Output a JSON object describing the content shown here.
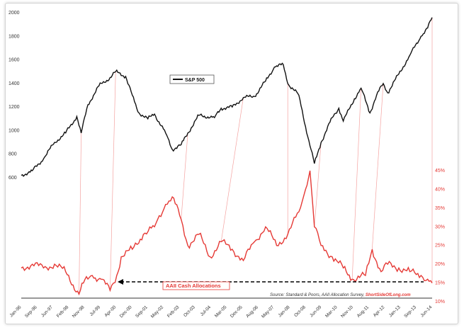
{
  "chart_data": {
    "type": "line",
    "title": "",
    "left_axis": {
      "ticks": [
        600,
        800,
        1000,
        1200,
        1400,
        1600,
        1800,
        2000
      ],
      "range": [
        400,
        2000
      ]
    },
    "right_axis": {
      "ticks": [
        "10%",
        "15%",
        "20%",
        "25%",
        "30%",
        "35%",
        "40%",
        "45%"
      ],
      "range": [
        10,
        45
      ]
    },
    "x_axis_ticks": [
      "Jan-96",
      "Sep-96",
      "Jun-97",
      "Feb-98",
      "Nov-98",
      "Jul-99",
      "Apr-00",
      "Dec-00",
      "Sep-01",
      "May-02",
      "Feb-03",
      "Oct-03",
      "Jul-04",
      "Mar-05",
      "Dec-05",
      "Aug-06",
      "May-07",
      "Jan-08",
      "Oct-08",
      "Jun-09",
      "Mar-10",
      "Nov-10",
      "Aug-11",
      "Apr-12",
      "Jan-13",
      "Sep-13",
      "Jun-14"
    ],
    "series": [
      {
        "name": "S&P 500",
        "color": "#111111",
        "axis": "left",
        "x": [
          1996.0,
          1996.5,
          1997.0,
          1997.5,
          1998.0,
          1998.5,
          1998.7,
          1999.0,
          1999.5,
          2000.0,
          2000.25,
          2000.7,
          2001.0,
          2001.25,
          2001.7,
          2002.0,
          2002.5,
          2002.8,
          2003.2,
          2003.5,
          2004.0,
          2004.7,
          2005.0,
          2005.5,
          2006.0,
          2006.5,
          2007.0,
          2007.4,
          2007.8,
          2008.0,
          2008.5,
          2008.9,
          2009.2,
          2009.5,
          2010.0,
          2010.3,
          2010.5,
          2011.0,
          2011.3,
          2011.7,
          2012.0,
          2012.3,
          2012.5,
          2013.0,
          2013.5,
          2014.0,
          2014.3,
          2014.5
        ],
        "values": [
          620,
          660,
          760,
          900,
          980,
          1120,
          980,
          1220,
          1380,
          1450,
          1500,
          1460,
          1300,
          1160,
          1100,
          1140,
          980,
          840,
          880,
          980,
          1130,
          1110,
          1190,
          1200,
          1280,
          1290,
          1420,
          1540,
          1560,
          1400,
          1300,
          950,
          720,
          900,
          1110,
          1190,
          1080,
          1270,
          1360,
          1150,
          1300,
          1400,
          1320,
          1480,
          1640,
          1800,
          1870,
          1960
        ]
      },
      {
        "name": "AAII Cash Allocations",
        "color": "#e53935",
        "axis": "right",
        "x": [
          1996.0,
          1996.5,
          1997.0,
          1997.5,
          1998.0,
          1998.6,
          1998.8,
          1999.2,
          1999.6,
          2000.0,
          2000.3,
          2000.5,
          2001.0,
          2001.5,
          2002.0,
          2002.5,
          2002.8,
          2003.2,
          2003.5,
          2004.0,
          2004.5,
          2005.0,
          2005.5,
          2006.0,
          2006.5,
          2007.0,
          2007.5,
          2008.0,
          2008.5,
          2008.8,
          2009.0,
          2009.2,
          2009.5,
          2010.0,
          2010.5,
          2010.9,
          2011.5,
          2011.8,
          2012.2,
          2012.5,
          2013.0,
          2013.5,
          2014.0,
          2014.3,
          2014.5
        ],
        "values": [
          19,
          20,
          19,
          20,
          18,
          12,
          15,
          17,
          16,
          13,
          17,
          22,
          24,
          28,
          30,
          36,
          38,
          32,
          25,
          28,
          22,
          26,
          24,
          21,
          26,
          30,
          25,
          28,
          34,
          40,
          45,
          30,
          25,
          22,
          19,
          16,
          17,
          24,
          18,
          20,
          19,
          18,
          17,
          16,
          15
        ]
      }
    ],
    "legend": {
      "label": "S&P 500",
      "placement": "center"
    },
    "annotations": [
      {
        "text": "AAII Cash Allocations"
      },
      {
        "text": "Source: Standard & Poors, AAII Allocation Survey, "
      },
      {
        "text": "ShortSideOfLong.com"
      }
    ]
  }
}
